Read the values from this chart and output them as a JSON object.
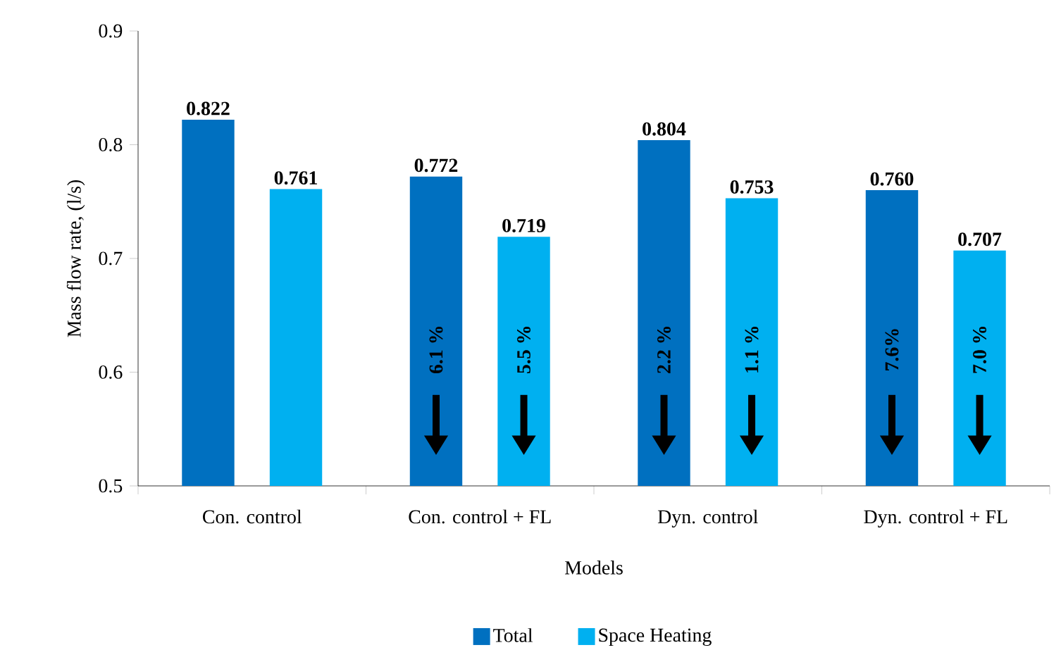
{
  "chart_data": {
    "type": "bar",
    "categories": [
      "Con. control",
      "Con. control + FL",
      "Dyn. control",
      "Dyn. control + FL"
    ],
    "series": [
      {
        "name": "Total",
        "color": "#0070c0",
        "values": [
          0.822,
          0.772,
          0.804,
          0.76
        ],
        "value_labels": [
          "0.822",
          "0.772",
          "0.804",
          "0.760"
        ]
      },
      {
        "name": "Space Heating",
        "color": "#00b0f0",
        "values": [
          0.761,
          0.719,
          0.753,
          0.707
        ],
        "value_labels": [
          "0.761",
          "0.719",
          "0.753",
          "0.707"
        ]
      }
    ],
    "xlabel": "Models",
    "ylabel": "Mass flow rate, (l/s)",
    "ylim": [
      0.5,
      0.9
    ],
    "yticks": [
      0.5,
      0.6,
      0.7,
      0.8,
      0.9
    ],
    "legend": "bottom",
    "grid": false,
    "annotations": [
      "6.1 %",
      "5.5 %",
      "2.2 %",
      "1.1 %",
      "7.6%",
      "7.0 %"
    ]
  }
}
